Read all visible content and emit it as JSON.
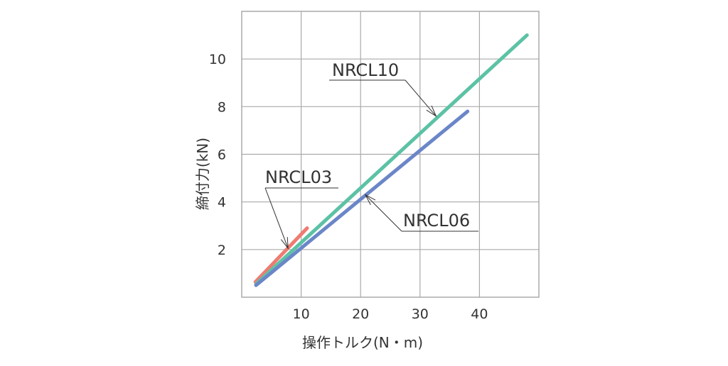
{
  "chart_data": {
    "type": "line",
    "xlabel": "操作トルク(N・m)",
    "ylabel": "締付力(kN)",
    "xlim": [
      0,
      50
    ],
    "ylim": [
      0,
      12
    ],
    "xticks": [
      10,
      20,
      30,
      40
    ],
    "yticks": [
      2,
      4,
      6,
      8,
      10
    ],
    "grid": true,
    "legend": "none",
    "series": [
      {
        "name": "NRCL03",
        "color": "#ee7b72",
        "x": [
          2.3,
          11
        ],
        "y": [
          0.64,
          2.9
        ],
        "label_at": [
          7.8,
          2.05
        ]
      },
      {
        "name": "NRCL10",
        "color": "#5cc2a5",
        "x": [
          2.4,
          48
        ],
        "y": [
          0.55,
          11
        ],
        "label_at": [
          32.7,
          7.6
        ]
      },
      {
        "name": "NRCL06",
        "color": "#6b86c8",
        "x": [
          2.4,
          38
        ],
        "y": [
          0.5,
          7.8
        ],
        "label_at": [
          20.8,
          4.3
        ]
      }
    ]
  }
}
